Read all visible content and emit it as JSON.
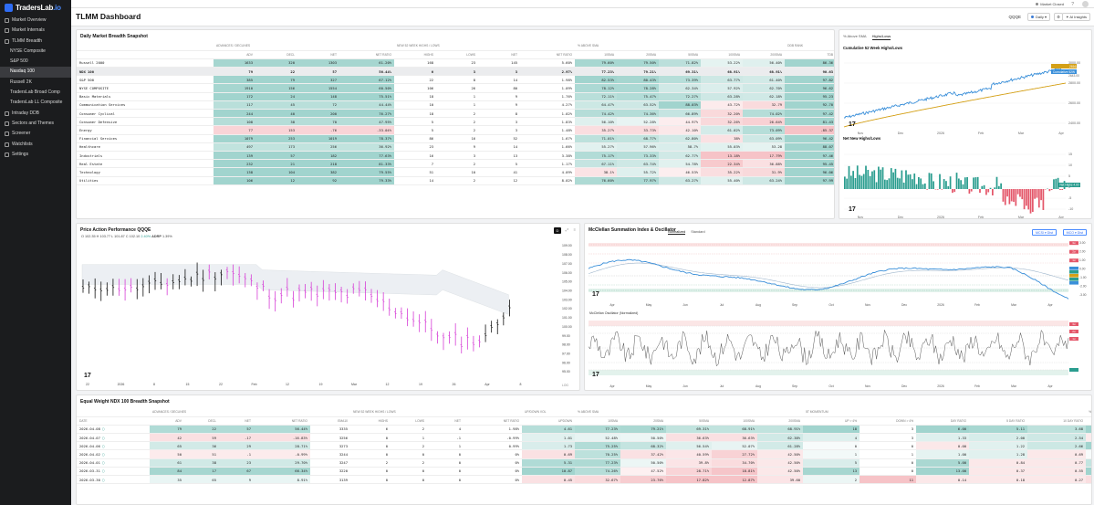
{
  "app": {
    "logo_name": "TradersLab",
    "logo_tld": ".io",
    "page_title": "TLMM Dashboard",
    "market_status": "Market Closed"
  },
  "sidebar": {
    "items": [
      {
        "label": "Market Overview",
        "sub": false,
        "active": false
      },
      {
        "label": "Market Internals",
        "sub": false,
        "active": false
      },
      {
        "label": "TLMM Breadth",
        "sub": false,
        "active": false
      },
      {
        "label": "NYSE Composite",
        "sub": true,
        "active": false
      },
      {
        "label": "S&P 500",
        "sub": true,
        "active": false
      },
      {
        "label": "Nasdaq 100",
        "sub": true,
        "active": true
      },
      {
        "label": "Russell 2K",
        "sub": true,
        "active": false
      },
      {
        "label": "TradersLab Broad Comp",
        "sub": true,
        "active": false
      },
      {
        "label": "TradersLab LL Composite",
        "sub": true,
        "active": false
      },
      {
        "label": "Intraday DDB",
        "sub": false,
        "active": false
      },
      {
        "label": "Sectors and Themes",
        "sub": false,
        "active": false
      },
      {
        "label": "Screener",
        "sub": false,
        "active": false
      },
      {
        "label": "Watchlists",
        "sub": false,
        "active": false
      },
      {
        "label": "Settings",
        "sub": false,
        "active": false
      }
    ]
  },
  "header": {
    "symbol": "QQQE",
    "interval": "Daily",
    "insights": "AI Insights"
  },
  "snapshot": {
    "title": "Daily Market Breadth Snapshot",
    "groups": [
      "ADVANCES / DECLINES",
      "NEW 52 WEEK HIGHS / LOWS",
      "% ABOVE SMA",
      "DDB RANK"
    ],
    "columns": [
      "",
      "ADV",
      "DECL",
      "NET",
      "NET RATIO",
      "HIGHS",
      "LOWS",
      "NET",
      "NET RATIO",
      "10SMA",
      "20SMA",
      "50SMA",
      "100SMA",
      "200SMA",
      "TDB"
    ],
    "rows": [
      [
        "Russell 2000",
        "1633",
        "320",
        "1303",
        "61.20%",
        "168",
        "23",
        "145",
        "5.60%",
        "79.60%",
        "79.50%",
        "71.82%",
        "53.22%",
        "56.40%",
        "86.36"
      ],
      [
        "NDX 100",
        "79",
        "22",
        "57",
        "56.44%",
        "6",
        "3",
        "3",
        "2.97%",
        "77.23%",
        "79.21%",
        "69.31%",
        "68.91%",
        "68.91%",
        "90.63"
      ],
      [
        "S&P 500",
        "385",
        "79",
        "327",
        "67.12%",
        "22",
        "8",
        "14",
        "1.98%",
        "82.53%",
        "80.43%",
        "73.39%",
        "63.77%",
        "61.40%",
        "97.82"
      ],
      [
        "NYSE COMPOSITE",
        "1910",
        "156",
        "1554",
        "60.50%",
        "106",
        "26",
        "80",
        "1.09%",
        "78.12%",
        "78.28%",
        "62.34%",
        "57.92%",
        "62.70%",
        "96.62"
      ],
      [
        "Basic Materials",
        "172",
        "24",
        "148",
        "75.51%",
        "18",
        "1",
        "9",
        "1.76%",
        "72.11%",
        "75.47%",
        "72.27%",
        "63.28%",
        "62.18%",
        "95.23"
      ],
      [
        "Communication Services",
        "117",
        "45",
        "72",
        "44.44%",
        "10",
        "1",
        "9",
        "4.27%",
        "64.47%",
        "63.52%",
        "88.03%",
        "43.72%",
        "32.79",
        "92.70"
      ],
      [
        "Consumer Cyclical",
        "244",
        "40",
        "200",
        "76.27%",
        "18",
        "2",
        "8",
        "1.02%",
        "74.42%",
        "74.36%",
        "66.89%",
        "32.20%",
        "74.02%",
        "97.42"
      ],
      [
        "Consumer Defensive",
        "108",
        "38",
        "70",
        "47.95%",
        "5",
        "2",
        "3",
        "1.83%",
        "56.10%",
        "52.28%",
        "44.97%",
        "32.26%",
        "26.64%",
        "81.43"
      ],
      [
        "Energy",
        "77",
        "153",
        "-76",
        "-33.04%",
        "5",
        "2",
        "3",
        "1.48%",
        "35.27%",
        "33.73%",
        "42.10%",
        "61.02%",
        "73.09%",
        "-85.37"
      ],
      [
        "Financial Services",
        "1079",
        "253",
        "1019",
        "78.37%",
        "86",
        "16",
        "52",
        "1.67%",
        "71.01%",
        "68.77%",
        "62.80%",
        "38%",
        "63.09%",
        "96.42"
      ],
      [
        "Healthcare",
        "497",
        "173",
        "256",
        "36.92%",
        "23",
        "9",
        "14",
        "1.66%",
        "55.27%",
        "57.96%",
        "58.7%",
        "55.03%",
        "53.28",
        "88.07"
      ],
      [
        "Industrials",
        "139",
        "57",
        "182",
        "77.63%",
        "16",
        "3",
        "13",
        "3.38%",
        "75.17%",
        "73.33%",
        "62.77%",
        "13.18%",
        "17.79%",
        "97.46"
      ],
      [
        "Real Estate",
        "232",
        "21",
        "218",
        "81.33%",
        "7",
        "2",
        "5",
        "1.17%",
        "67.11%",
        "63.74%",
        "54.78%",
        "22.34%",
        "36.88%",
        "95.45"
      ],
      [
        "Technology",
        "138",
        "104",
        "382",
        "79.55%",
        "51",
        "10",
        "41",
        "4.09%",
        "38.1%",
        "55.72%",
        "46.53%",
        "35.22%",
        "31.9%",
        "96.06"
      ],
      [
        "Utilities",
        "106",
        "12",
        "92",
        "79.33%",
        "14",
        "2",
        "12",
        "8.02%",
        "76.60%",
        "77.97%",
        "63.27%",
        "55.40%",
        "63.24%",
        "97.99"
      ]
    ]
  },
  "right_tabs": {
    "tabs": [
      "% Above SMA",
      "Highs/Lows"
    ],
    "active": 1
  },
  "cumulative": {
    "title": "Cumulative 52 Week Highs/Lows",
    "y_labels": [
      "3000.00",
      "2800.00",
      "2600.00",
      "2400.00"
    ],
    "x_labels": [
      "Nov",
      "Dec",
      "2026",
      "Feb",
      "Mar",
      "Apr"
    ],
    "badge_a": "2816.33",
    "badge_b": "Cumulative 52W",
    "badge_c": "2643.00"
  },
  "netnew": {
    "title": "Net New Highs/Lows",
    "y_labels": [
      "15",
      "10",
      "5",
      "0",
      "-5",
      "-10"
    ],
    "x_labels": [
      "Nov",
      "Dec",
      "2026",
      "Feb",
      "Mar",
      "Apr"
    ],
    "badge": "Net Highs  4.00"
  },
  "price": {
    "title": "Price Action Performance QQQE",
    "ohlc": "O 102.35 H 103.77 L 101.87 C 102.10 ",
    "change": "2.40%",
    "adrp_label": "ADRP",
    "adrp": "1.39%",
    "y_labels": [
      "109.00",
      "108.00",
      "107.00",
      "106.00",
      "105.00",
      "104.00",
      "103.00",
      "102.00",
      "101.00",
      "100.00",
      "99.00",
      "98.00",
      "97.00",
      "96.00",
      "95.00"
    ],
    "x_labels": [
      "22",
      "2026",
      "8",
      "15",
      "22",
      "Feb",
      "12",
      "19",
      "Mar",
      "12",
      "19",
      "26",
      "Apr",
      "8"
    ],
    "scale": "LOG"
  },
  "mcclellan": {
    "title": "McClellan Summation Index & Oscillator",
    "tabs": [
      "Normalized",
      "Standard"
    ],
    "active": 0,
    "btns": [
      "MCSI  ▾ Dist",
      "MCO  ▾ Dist"
    ],
    "osc_label": "McClellan Oscillator (Normalized)",
    "upper_labels": [
      "3.00",
      "2.00",
      "1.00",
      "0.00",
      "-1.00",
      "-2.00",
      "-3.00"
    ],
    "upper_badges": [
      "3σ",
      "2σ",
      "1σ"
    ],
    "lower_badges": [
      "3σ",
      "2σ",
      "1σ"
    ],
    "x_labels": [
      "Apr",
      "May",
      "Jun",
      "Jul",
      "Aug",
      "Sep",
      "Oct",
      "Nov",
      "Dec",
      "2026",
      "Feb",
      "Mar",
      "Apr"
    ]
  },
  "eq": {
    "title": "Equal Weight NDX 100 Breadth Snapshot",
    "groups": [
      "ADVANCES / DECLINES",
      "NEW 52 WEEK HIGHS / LOWS",
      "UP/DOWN VOL",
      "% ABOVE SMA",
      "5T MOMENTUM",
      "% DDB RANK"
    ],
    "columns": [
      "DATE",
      "ADV",
      "DECL",
      "NET",
      "NET RATIO",
      "EMA10",
      "HIGHS",
      "LOWS",
      "NET",
      "NET RATIO",
      "UPDOWN",
      "10SMA",
      "20SMA",
      "50SMA",
      "100SMA",
      "200SMA",
      "UP > 4%",
      "DOWN > 4%",
      "DAY RATIO",
      "5 DAY RATIO",
      "10 DAY RATIO",
      "TDB"
    ],
    "rows": [
      [
        "2026-04-08",
        "79",
        "22",
        "57",
        "56.44%",
        "3335",
        "6",
        "2",
        "4",
        "1.98%",
        "4.61",
        "77.23%",
        "79.21%",
        "69.31%",
        "68.91%",
        "68.91%",
        "18",
        "3",
        "6.00",
        "5.11",
        "3.68",
        "97.11"
      ],
      [
        "2026-04-07",
        "42",
        "59",
        "-17",
        "-16.83%",
        "3256",
        "0",
        "1",
        "-1",
        "-0.99%",
        "1.01",
        "52.48%",
        "50.50%",
        "36.63%",
        "36.63%",
        "62.38%",
        "4",
        "3",
        "1.33",
        "2.00",
        "2.54",
        "-16.82"
      ],
      [
        "2026-04-06",
        "65",
        "36",
        "29",
        "28.71%",
        "3273",
        "0",
        "2",
        "1",
        "0.99%",
        "1.73",
        "75.25%",
        "68.32%",
        "56.54%",
        "52.07%",
        "61.28%",
        "0",
        "0",
        "0.00",
        "1.22",
        "2.66",
        "86.49"
      ],
      [
        "2026-04-02",
        "50",
        "51",
        "-1",
        "-0.99%",
        "3244",
        "0",
        "0",
        "0",
        "0%",
        "0.69",
        "70.25%",
        "37.42%",
        "40.59%",
        "27.72%",
        "42.50%",
        "1",
        "1",
        "1.00",
        "1.28",
        "0.69",
        "7.39"
      ],
      [
        "2026-04-01",
        "61",
        "38",
        "23",
        "29.70%",
        "3247",
        "2",
        "2",
        "0",
        "0%",
        "5.31",
        "77.23%",
        "50.50%",
        "39.8%",
        "34.70%",
        "42.50%",
        "5",
        "0",
        "5.00",
        "0.84",
        "0.77",
        "51.60"
      ],
      [
        "2026-03-31",
        "84",
        "17",
        "67",
        "66.34%",
        "3220",
        "0",
        "0",
        "0",
        "0%",
        "10.87",
        "74.26%",
        "47.52%",
        "28.71%",
        "18.81%",
        "42.50%",
        "13",
        "0",
        "13.00",
        "0.37",
        "0.55",
        "97.45"
      ],
      [
        "2026-03-30",
        "35",
        "65",
        "9",
        "8.91%",
        "3139",
        "0",
        "0",
        "0",
        "0%",
        "0.45",
        "32.67%",
        "23.76%",
        "17.82%",
        "12.87%",
        "39.60",
        "2",
        "11",
        "0.14",
        "0.18",
        "0.27",
        "-33.73"
      ]
    ]
  }
}
